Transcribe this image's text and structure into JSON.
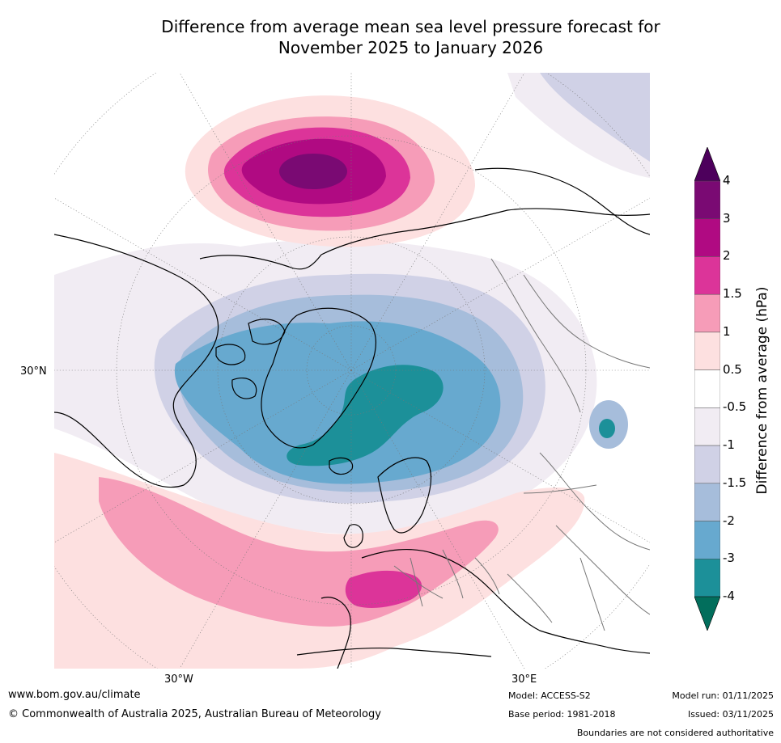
{
  "title": {
    "line1": "Difference from average mean sea level pressure forecast for",
    "line2": "November 2025 to January 2026"
  },
  "map": {
    "projection": "north-polar-stereographic",
    "labels": {
      "lat_30n": "30°N",
      "lon_30w": "30°W",
      "lon_30e": "30°E"
    }
  },
  "colorbar": {
    "title": "Difference from average (hPa)",
    "ticks": [
      "4",
      "3",
      "2",
      "1.5",
      "1",
      "0.5",
      "-0.5",
      "-1",
      "-1.5",
      "-2",
      "-3",
      "-4"
    ],
    "bins": [
      {
        "range": "> 4",
        "color": "#4d005c"
      },
      {
        "range": "3 to 4",
        "color": "#7a0a73"
      },
      {
        "range": "2 to 3",
        "color": "#b00a82"
      },
      {
        "range": "1.5 to 2",
        "color": "#dc3499"
      },
      {
        "range": "1 to 1.5",
        "color": "#f69cb8"
      },
      {
        "range": "0.5 to 1",
        "color": "#fde0e0"
      },
      {
        "range": "-0.5 to 0.5",
        "color": "#ffffff"
      },
      {
        "range": "-1 to -0.5",
        "color": "#f1ecf3"
      },
      {
        "range": "-1.5 to -1",
        "color": "#d0d1e6"
      },
      {
        "range": "-2 to -1.5",
        "color": "#a6bddb"
      },
      {
        "range": "-3 to -2",
        "color": "#67a9cf"
      },
      {
        "range": "-4 to -3",
        "color": "#1c9099"
      },
      {
        "range": "< -4",
        "color": "#026e5c"
      }
    ]
  },
  "footer": {
    "website": "www.bom.gov.au/climate",
    "copyright": "© Commonwealth of Australia 2025, Australian Bureau of Meteorology",
    "model": "Model: ACCESS-S2",
    "base_period": "Base period: 1981-2018",
    "model_run": "Model run: 01/11/2025",
    "issued": "Issued: 03/11/2025",
    "disclaimer": "Boundaries are not considered authoritative"
  }
}
